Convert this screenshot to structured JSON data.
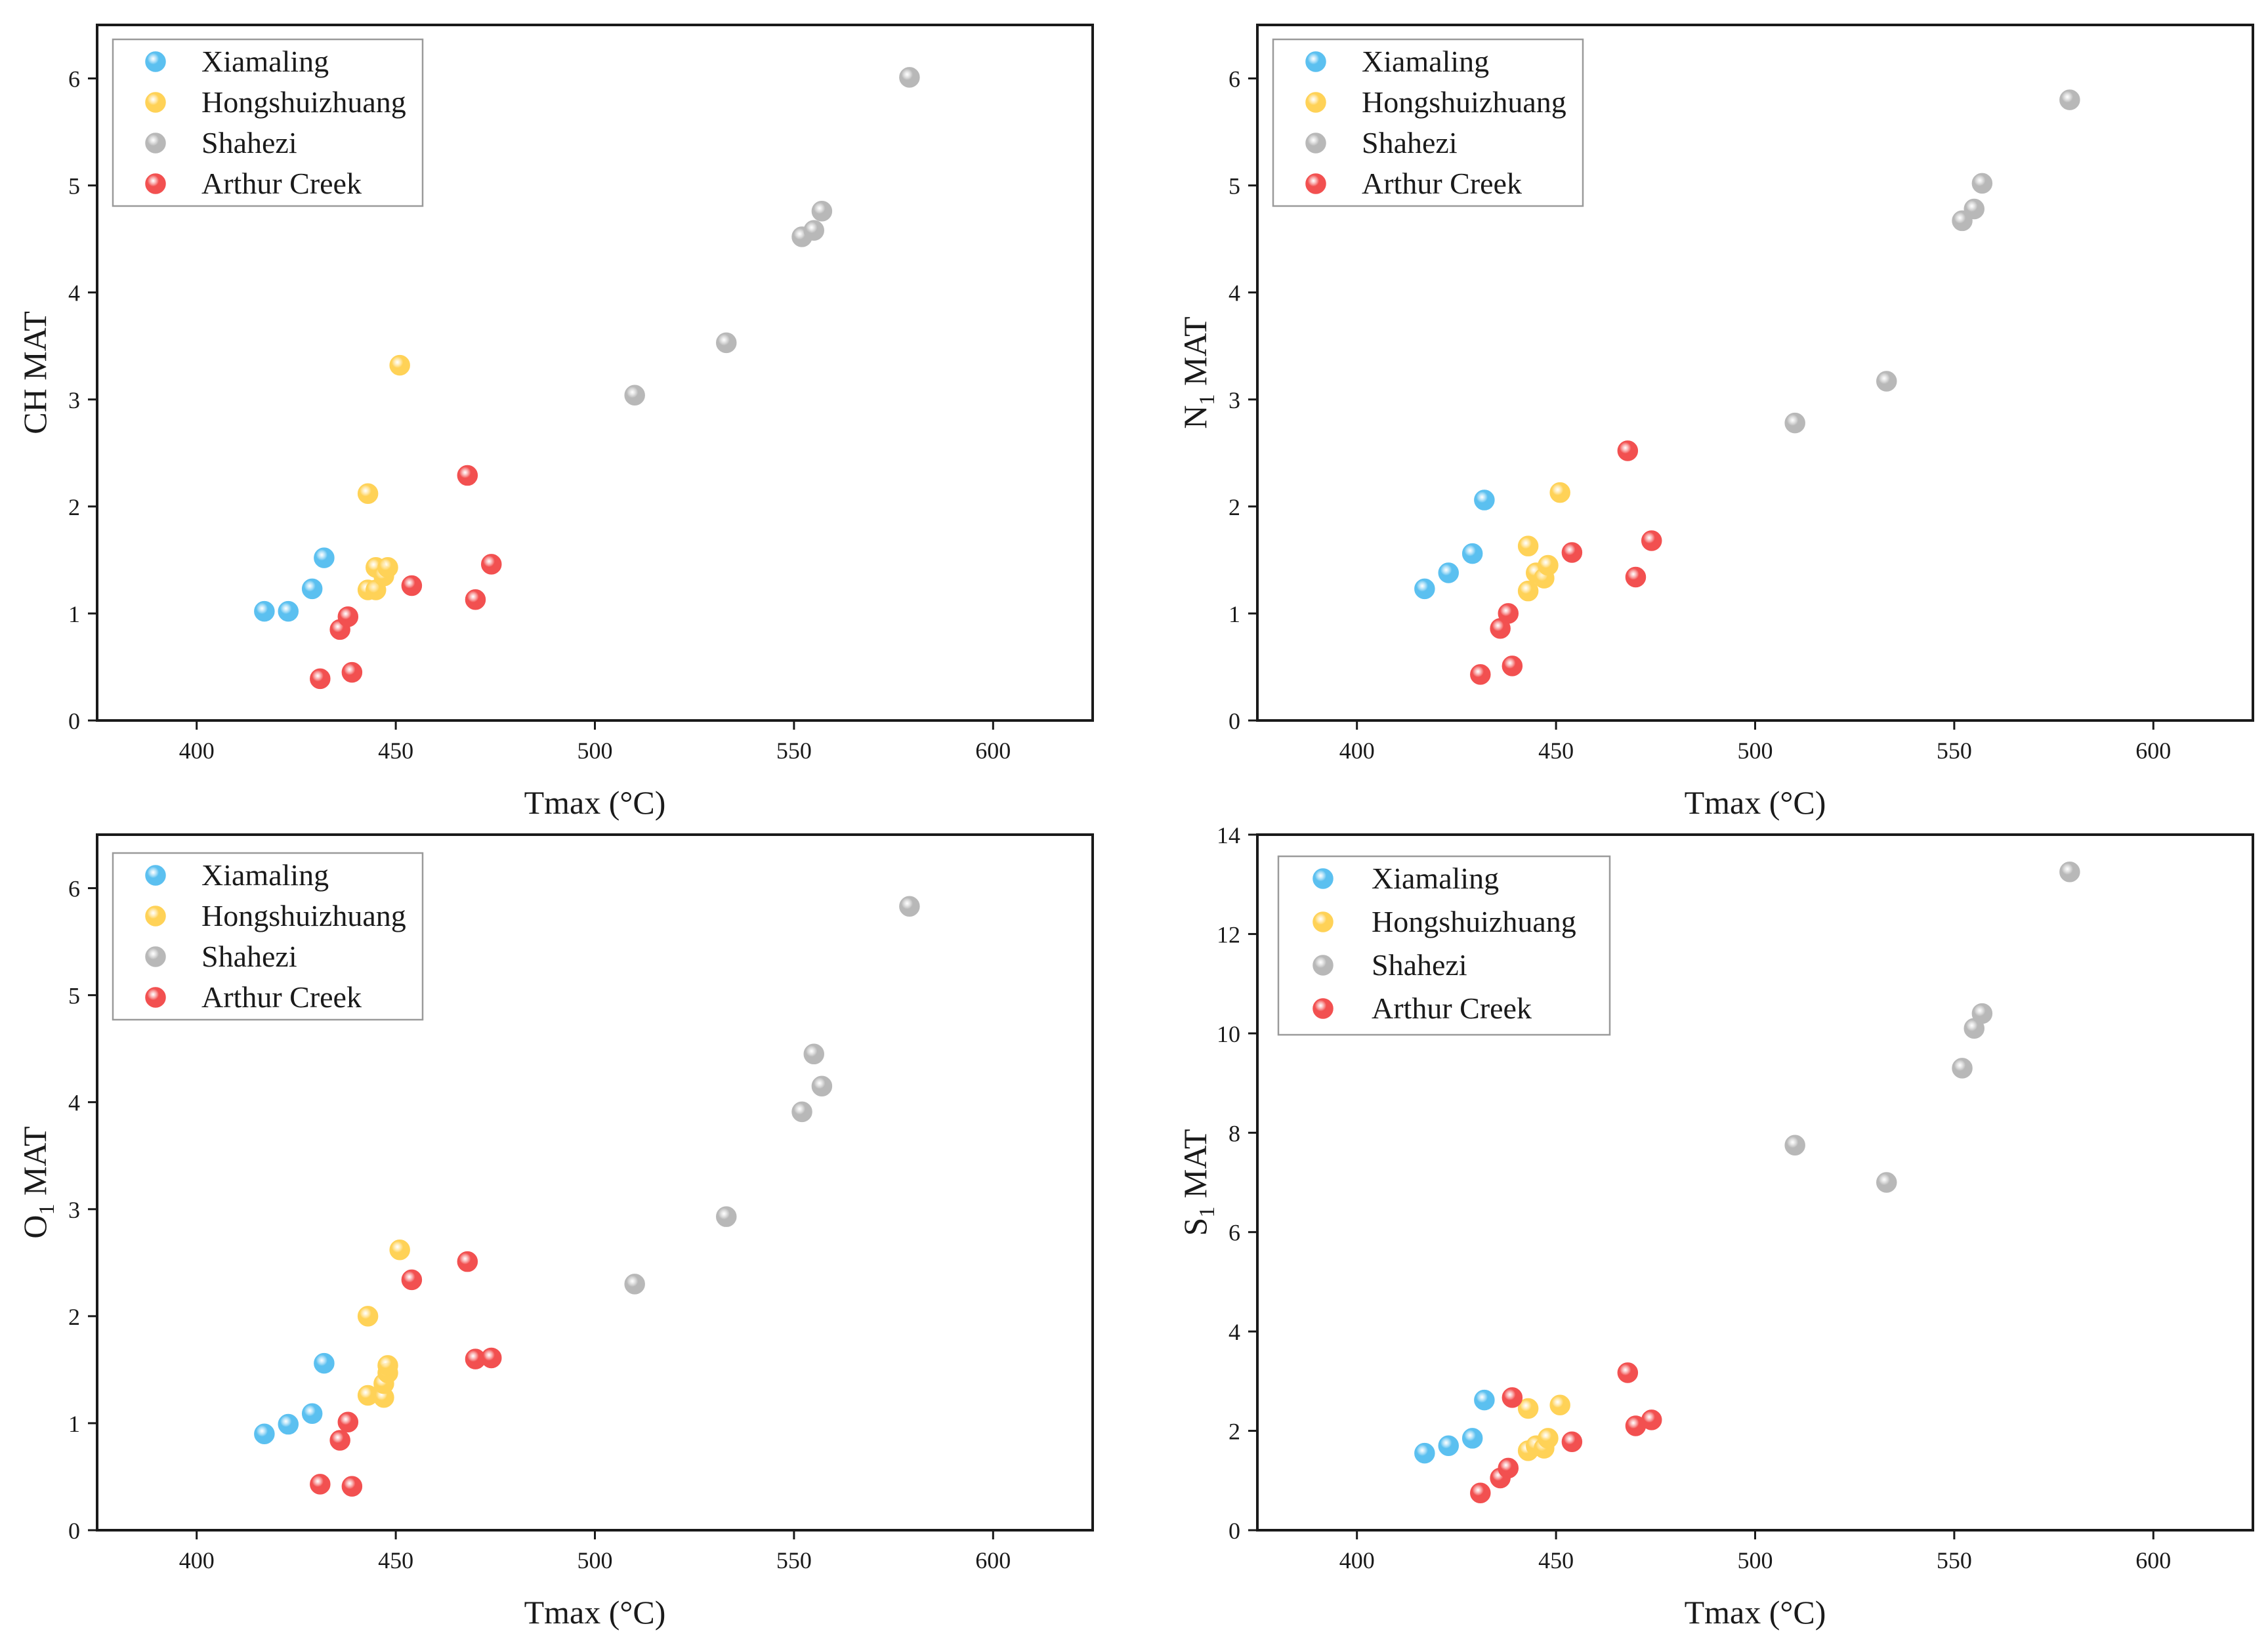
{
  "chart_data": [
    {
      "type": "scatter",
      "title": "",
      "xlabel": "Tmax (°C)",
      "ylabel_main": "CH MAT",
      "ylabel_sub": "",
      "ylabel_suffix": "",
      "xlim": [
        375,
        625
      ],
      "ylim": [
        0,
        6.5
      ],
      "xticks": [
        400,
        450,
        500,
        550,
        600
      ],
      "yticks": [
        0,
        1,
        2,
        3,
        4,
        5,
        6
      ],
      "legend_position": "top-left",
      "series": [
        {
          "name": "Xiamaling",
          "color": "#5bc0f0",
          "points": [
            [
              417,
              1.02
            ],
            [
              423,
              1.02
            ],
            [
              429,
              1.23
            ],
            [
              432,
              1.52
            ]
          ]
        },
        {
          "name": "Hongshuizhuang",
          "color": "#ffd257",
          "points": [
            [
              443,
              2.12
            ],
            [
              443,
              1.22
            ],
            [
              445,
              1.22
            ],
            [
              445,
              1.43
            ],
            [
              447,
              1.35
            ],
            [
              448,
              1.43
            ],
            [
              451,
              3.32
            ]
          ]
        },
        {
          "name": "Shahezi",
          "color": "#b8b8b8",
          "points": [
            [
              510,
              3.04
            ],
            [
              533,
              3.53
            ],
            [
              552,
              4.52
            ],
            [
              555,
              4.58
            ],
            [
              557,
              4.76
            ],
            [
              579,
              6.01
            ]
          ]
        },
        {
          "name": "Arthur Creek",
          "color": "#f25050",
          "points": [
            [
              431,
              0.39
            ],
            [
              436,
              0.85
            ],
            [
              438,
              0.97
            ],
            [
              439,
              0.45
            ],
            [
              454,
              1.26
            ],
            [
              468,
              2.29
            ],
            [
              470,
              1.13
            ],
            [
              474,
              1.46
            ]
          ]
        }
      ]
    },
    {
      "type": "scatter",
      "title": "",
      "xlabel": "Tmax (°C)",
      "ylabel_main": "N",
      "ylabel_sub": "1",
      "ylabel_suffix": " MAT",
      "xlim": [
        375,
        625
      ],
      "ylim": [
        0,
        6.5
      ],
      "xticks": [
        400,
        450,
        500,
        550,
        600
      ],
      "yticks": [
        0,
        1,
        2,
        3,
        4,
        5,
        6
      ],
      "legend_position": "top-left",
      "series": [
        {
          "name": "Xiamaling",
          "color": "#5bc0f0",
          "points": [
            [
              417,
              1.23
            ],
            [
              423,
              1.38
            ],
            [
              429,
              1.56
            ],
            [
              432,
              2.06
            ]
          ]
        },
        {
          "name": "Hongshuizhuang",
          "color": "#ffd257",
          "points": [
            [
              443,
              1.63
            ],
            [
              443,
              1.21
            ],
            [
              445,
              1.38
            ],
            [
              447,
              1.33
            ],
            [
              448,
              1.45
            ],
            [
              451,
              2.13
            ]
          ]
        },
        {
          "name": "Shahezi",
          "color": "#b8b8b8",
          "points": [
            [
              510,
              2.78
            ],
            [
              533,
              3.17
            ],
            [
              552,
              4.67
            ],
            [
              555,
              4.78
            ],
            [
              557,
              5.02
            ],
            [
              579,
              5.8
            ]
          ]
        },
        {
          "name": "Arthur Creek",
          "color": "#f25050",
          "points": [
            [
              431,
              0.43
            ],
            [
              436,
              0.86
            ],
            [
              438,
              1.0
            ],
            [
              439,
              0.51
            ],
            [
              454,
              1.57
            ],
            [
              468,
              2.52
            ],
            [
              470,
              1.34
            ],
            [
              474,
              1.68
            ]
          ]
        }
      ]
    },
    {
      "type": "scatter",
      "title": "",
      "xlabel": "Tmax (°C)",
      "ylabel_main": "O",
      "ylabel_sub": "1",
      "ylabel_suffix": " MAT",
      "xlim": [
        375,
        625
      ],
      "ylim": [
        0,
        6.5
      ],
      "xticks": [
        400,
        450,
        500,
        550,
        600
      ],
      "yticks": [
        0,
        1,
        2,
        3,
        4,
        5,
        6
      ],
      "legend_position": "top-left",
      "series": [
        {
          "name": "Xiamaling",
          "color": "#5bc0f0",
          "points": [
            [
              417,
              0.9
            ],
            [
              423,
              0.99
            ],
            [
              429,
              1.09
            ],
            [
              432,
              1.56
            ]
          ]
        },
        {
          "name": "Hongshuizhuang",
          "color": "#ffd257",
          "points": [
            [
              443,
              2.0
            ],
            [
              443,
              1.26
            ],
            [
              447,
              1.24
            ],
            [
              447,
              1.37
            ],
            [
              448,
              1.47
            ],
            [
              448,
              1.54
            ],
            [
              451,
              2.62
            ]
          ]
        },
        {
          "name": "Shahezi",
          "color": "#b8b8b8",
          "points": [
            [
              510,
              2.3
            ],
            [
              533,
              2.93
            ],
            [
              552,
              3.91
            ],
            [
              555,
              4.45
            ],
            [
              557,
              4.15
            ],
            [
              579,
              5.83
            ]
          ]
        },
        {
          "name": "Arthur Creek",
          "color": "#f25050",
          "points": [
            [
              431,
              0.43
            ],
            [
              436,
              0.84
            ],
            [
              438,
              1.01
            ],
            [
              439,
              0.41
            ],
            [
              454,
              2.34
            ],
            [
              468,
              2.51
            ],
            [
              470,
              1.6
            ],
            [
              474,
              1.61
            ]
          ]
        }
      ]
    },
    {
      "type": "scatter",
      "title": "",
      "xlabel": "Tmax (°C)",
      "ylabel_main": "S",
      "ylabel_sub": "1",
      "ylabel_suffix": " MAT",
      "xlim": [
        375,
        625
      ],
      "ylim": [
        0,
        14
      ],
      "xticks": [
        400,
        450,
        500,
        550,
        600
      ],
      "yticks": [
        0,
        2,
        4,
        6,
        8,
        10,
        12,
        14
      ],
      "legend_position": "top-left",
      "series": [
        {
          "name": "Xiamaling",
          "color": "#5bc0f0",
          "points": [
            [
              417,
              1.55
            ],
            [
              423,
              1.7
            ],
            [
              429,
              1.85
            ],
            [
              432,
              2.62
            ]
          ]
        },
        {
          "name": "Hongshuizhuang",
          "color": "#ffd257",
          "points": [
            [
              443,
              2.45
            ],
            [
              443,
              1.6
            ],
            [
              445,
              1.7
            ],
            [
              447,
              1.65
            ],
            [
              448,
              1.85
            ],
            [
              451,
              2.52
            ]
          ]
        },
        {
          "name": "Shahezi",
          "color": "#b8b8b8",
          "points": [
            [
              510,
              7.75
            ],
            [
              533,
              7.0
            ],
            [
              552,
              9.3
            ],
            [
              555,
              10.1
            ],
            [
              557,
              10.4
            ],
            [
              579,
              13.25
            ]
          ]
        },
        {
          "name": "Arthur Creek",
          "color": "#f25050",
          "points": [
            [
              431,
              0.75
            ],
            [
              436,
              1.05
            ],
            [
              438,
              1.25
            ],
            [
              439,
              2.67
            ],
            [
              454,
              1.78
            ],
            [
              468,
              3.17
            ],
            [
              470,
              2.1
            ],
            [
              474,
              2.22
            ]
          ]
        }
      ]
    }
  ]
}
